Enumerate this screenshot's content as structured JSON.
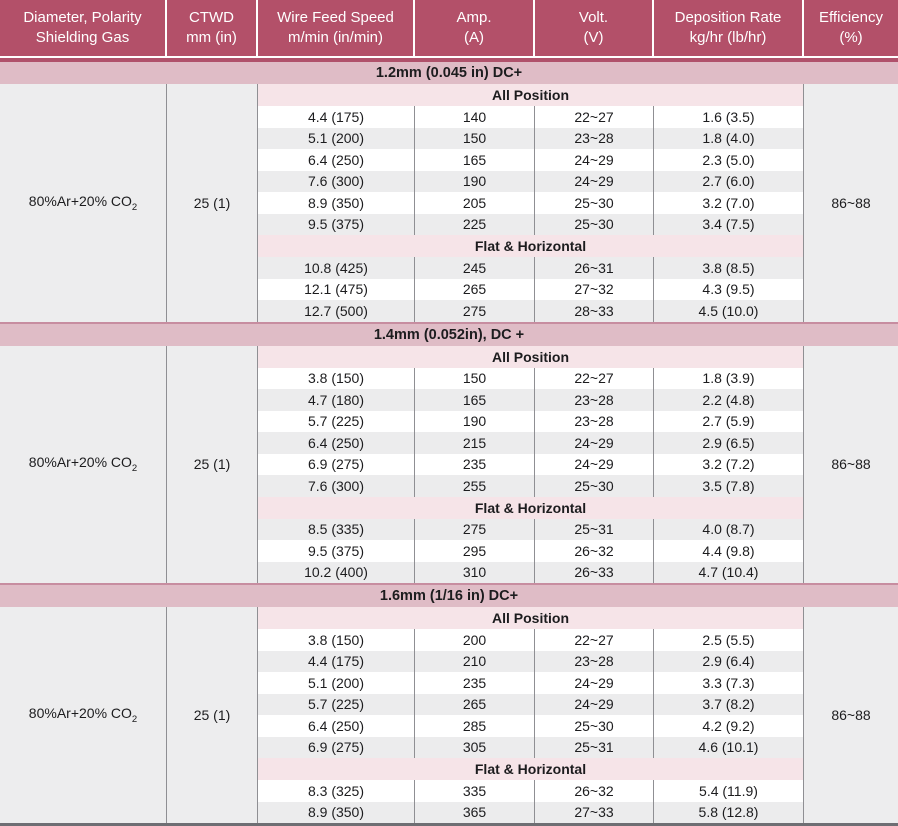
{
  "colors": {
    "header_bg": "#b35069",
    "header_text": "#ffffff",
    "size_band_bg": "#dfbcc6",
    "size_band_edge": "#c78da0",
    "size_band_edge_strong": "#b0516b",
    "position_band_bg": "#f6e4e8",
    "block_bg": "#ededee",
    "row_shaded_bg": "#ececed",
    "grid_line": "#8f8f93",
    "text": "#1c1c1e",
    "bottom_border": "#6e6e73"
  },
  "table": {
    "header": {
      "cols": [
        {
          "line1": "Diameter, Polarity",
          "line2": "Shielding Gas"
        },
        {
          "line1": "CTWD",
          "line2": "mm (in)"
        },
        {
          "line1": "Wire Feed Speed",
          "line2": "m/min (in/min)"
        },
        {
          "line1": "Amp.",
          "line2": "(A)"
        },
        {
          "line1": "Volt.",
          "line2": "(V)"
        },
        {
          "line1": "Deposition Rate",
          "line2": "kg/hr (lb/hr)"
        },
        {
          "line1": "Efficiency",
          "line2": "(%)"
        }
      ]
    },
    "blocks": [
      {
        "size_label": "1.2mm (0.045 in) DC+",
        "gas_main": "80%Ar+20% CO",
        "gas_sub": "2",
        "ctwd": "25 (1)",
        "efficiency": "86~88",
        "sections": [
          {
            "label": "All Position",
            "rows": [
              {
                "shaded": false,
                "values": [
                  "4.4 (175)",
                  "140",
                  "22~27",
                  "1.6 (3.5)"
                ]
              },
              {
                "shaded": true,
                "values": [
                  "5.1 (200)",
                  "150",
                  "23~28",
                  "1.8 (4.0)"
                ]
              },
              {
                "shaded": false,
                "values": [
                  "6.4 (250)",
                  "165",
                  "24~29",
                  "2.3 (5.0)"
                ]
              },
              {
                "shaded": true,
                "values": [
                  "7.6 (300)",
                  "190",
                  "24~29",
                  "2.7 (6.0)"
                ]
              },
              {
                "shaded": false,
                "values": [
                  "8.9 (350)",
                  "205",
                  "25~30",
                  "3.2 (7.0)"
                ]
              },
              {
                "shaded": true,
                "values": [
                  "9.5 (375)",
                  "225",
                  "25~30",
                  "3.4 (7.5)"
                ]
              }
            ]
          },
          {
            "label": "Flat & Horizontal",
            "rows": [
              {
                "shaded": true,
                "values": [
                  "10.8 (425)",
                  "245",
                  "26~31",
                  "3.8 (8.5)"
                ]
              },
              {
                "shaded": false,
                "values": [
                  "12.1 (475)",
                  "265",
                  "27~32",
                  "4.3 (9.5)"
                ]
              },
              {
                "shaded": true,
                "values": [
                  "12.7 (500)",
                  "275",
                  "28~33",
                  "4.5 (10.0)"
                ]
              }
            ]
          }
        ]
      },
      {
        "size_label": "1.4mm (0.052in), DC +",
        "gas_main": "80%Ar+20% CO",
        "gas_sub": "2",
        "ctwd": "25 (1)",
        "efficiency": "86~88",
        "sections": [
          {
            "label": "All Position",
            "rows": [
              {
                "shaded": false,
                "values": [
                  "3.8 (150)",
                  "150",
                  "22~27",
                  "1.8 (3.9)"
                ]
              },
              {
                "shaded": true,
                "values": [
                  "4.7 (180)",
                  "165",
                  "23~28",
                  "2.2 (4.8)"
                ]
              },
              {
                "shaded": false,
                "values": [
                  "5.7 (225)",
                  "190",
                  "23~28",
                  "2.7 (5.9)"
                ]
              },
              {
                "shaded": true,
                "values": [
                  "6.4 (250)",
                  "215",
                  "24~29",
                  "2.9 (6.5)"
                ]
              },
              {
                "shaded": false,
                "values": [
                  "6.9 (275)",
                  "235",
                  "24~29",
                  "3.2 (7.2)"
                ]
              },
              {
                "shaded": true,
                "values": [
                  "7.6 (300)",
                  "255",
                  "25~30",
                  "3.5 (7.8)"
                ]
              }
            ]
          },
          {
            "label": "Flat & Horizontal",
            "rows": [
              {
                "shaded": true,
                "values": [
                  "8.5 (335)",
                  "275",
                  "25~31",
                  "4.0 (8.7)"
                ]
              },
              {
                "shaded": false,
                "values": [
                  "9.5 (375)",
                  "295",
                  "26~32",
                  "4.4 (9.8)"
                ]
              },
              {
                "shaded": true,
                "values": [
                  "10.2 (400)",
                  "310",
                  "26~33",
                  "4.7 (10.4)"
                ]
              }
            ]
          }
        ]
      },
      {
        "size_label": "1.6mm (1/16 in) DC+",
        "gas_main": "80%Ar+20% CO",
        "gas_sub": "2",
        "ctwd": "25 (1)",
        "efficiency": "86~88",
        "sections": [
          {
            "label": "All Position",
            "rows": [
              {
                "shaded": false,
                "values": [
                  "3.8 (150)",
                  "200",
                  "22~27",
                  "2.5 (5.5)"
                ]
              },
              {
                "shaded": true,
                "values": [
                  "4.4 (175)",
                  "210",
                  "23~28",
                  "2.9 (6.4)"
                ]
              },
              {
                "shaded": false,
                "values": [
                  "5.1 (200)",
                  "235",
                  "24~29",
                  "3.3 (7.3)"
                ]
              },
              {
                "shaded": true,
                "values": [
                  "5.7 (225)",
                  "265",
                  "24~29",
                  "3.7 (8.2)"
                ]
              },
              {
                "shaded": false,
                "values": [
                  "6.4 (250)",
                  "285",
                  "25~30",
                  "4.2 (9.2)"
                ]
              },
              {
                "shaded": true,
                "values": [
                  "6.9 (275)",
                  "305",
                  "25~31",
                  "4.6 (10.1)"
                ]
              }
            ]
          },
          {
            "label": "Flat & Horizontal",
            "rows": [
              {
                "shaded": false,
                "values": [
                  "8.3 (325)",
                  "335",
                  "26~32",
                  "5.4 (11.9)"
                ]
              },
              {
                "shaded": true,
                "values": [
                  "8.9 (350)",
                  "365",
                  "27~33",
                  "5.8 (12.8)"
                ]
              }
            ]
          }
        ]
      }
    ]
  }
}
